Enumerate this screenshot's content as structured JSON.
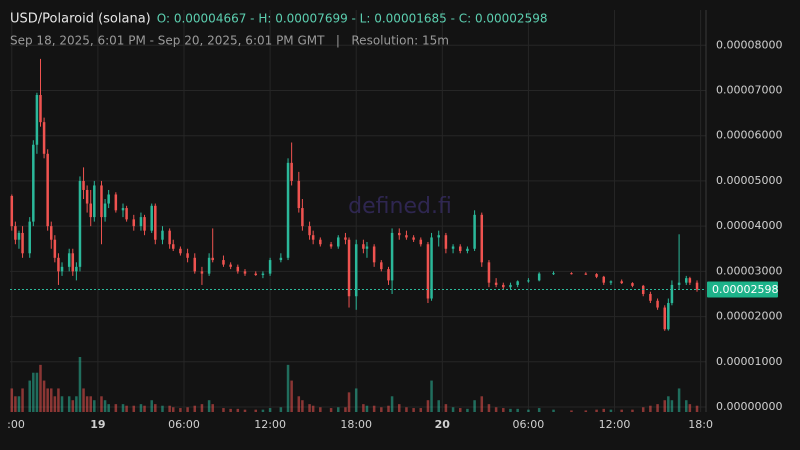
{
  "chart_data": {
    "type": "candlestick",
    "title": "USD/Polaroid (solana)",
    "ohlc_summary": "O: 0.00004667 - H: 0.00007699 - L: 0.00001685 - C: 0.00002598",
    "subtitle": "Sep 18, 2025, 6:01 PM - Sep 20, 2025, 6:01 PM GMT   |   Resolution: 15m",
    "watermark": "defined.fi",
    "up_color": "#2bb89a",
    "down_color": "#ef5350",
    "grid": true,
    "xlim": [
      -0.5,
      193.5
    ],
    "xticks": [
      {
        "value": 0,
        "label": ":00"
      },
      {
        "value": 24,
        "label": "19"
      },
      {
        "value": 48,
        "label": "06:00"
      },
      {
        "value": 72,
        "label": "12:00"
      },
      {
        "value": 96,
        "label": "18:00"
      },
      {
        "value": 120,
        "label": "20"
      },
      {
        "value": 144,
        "label": "06:00"
      },
      {
        "value": 168,
        "label": "12:00"
      },
      {
        "value": 192,
        "label": "18:0"
      }
    ],
    "ylim": [
      -1.1e-06,
      8.78e-05
    ],
    "yticks": [
      {
        "value": 0,
        "label": "0.00000000"
      },
      {
        "value": 1e-05,
        "label": "0.00001000"
      },
      {
        "value": 2e-05,
        "label": "0.00002000"
      },
      {
        "value": 3e-05,
        "label": "0.00003000"
      },
      {
        "value": 4e-05,
        "label": "0.00004000"
      },
      {
        "value": 5e-05,
        "label": "0.00005000"
      },
      {
        "value": 6e-05,
        "label": "0.00006000"
      },
      {
        "value": 7e-05,
        "label": "0.00007000"
      },
      {
        "value": 8e-05,
        "label": "0.00008000"
      }
    ],
    "last_price": {
      "value": 2.598e-05,
      "label": "0.00002598"
    },
    "candles": [
      {
        "x": 0,
        "o": 4.667e-05,
        "h": 4.7e-05,
        "l": 3.9e-05,
        "c": 4e-05,
        "v": 3
      },
      {
        "x": 1,
        "o": 4e-05,
        "h": 4.1e-05,
        "l": 3.6e-05,
        "c": 3.7e-05,
        "v": 2
      },
      {
        "x": 2,
        "o": 3.7e-05,
        "h": 3.9e-05,
        "l": 3.5e-05,
        "c": 3.85e-05,
        "v": 2
      },
      {
        "x": 3,
        "o": 3.85e-05,
        "h": 4e-05,
        "l": 3.3e-05,
        "c": 3.4e-05,
        "v": 3
      },
      {
        "x": 5,
        "o": 3.4e-05,
        "h": 4.2e-05,
        "l": 3.3e-05,
        "c": 4.1e-05,
        "v": 4
      },
      {
        "x": 6,
        "o": 4.1e-05,
        "h": 5.9e-05,
        "l": 4e-05,
        "c": 5.8e-05,
        "v": 5
      },
      {
        "x": 7,
        "o": 5.8e-05,
        "h": 6.95e-05,
        "l": 5.6e-05,
        "c": 6.9e-05,
        "v": 5
      },
      {
        "x": 8,
        "o": 6.9e-05,
        "h": 7.699e-05,
        "l": 6.2e-05,
        "c": 6.3e-05,
        "v": 6
      },
      {
        "x": 9,
        "o": 6.3e-05,
        "h": 6.4e-05,
        "l": 5.5e-05,
        "c": 5.6e-05,
        "v": 4
      },
      {
        "x": 10,
        "o": 5.6e-05,
        "h": 5.7e-05,
        "l": 3.9e-05,
        "c": 4e-05,
        "v": 3
      },
      {
        "x": 11,
        "o": 4e-05,
        "h": 4.1e-05,
        "l": 3.5e-05,
        "c": 3.7e-05,
        "v": 3
      },
      {
        "x": 12,
        "o": 3.7e-05,
        "h": 3.8e-05,
        "l": 3.2e-05,
        "c": 3.3e-05,
        "v": 2
      },
      {
        "x": 13,
        "o": 3.3e-05,
        "h": 3.4e-05,
        "l": 2.7e-05,
        "c": 3e-05,
        "v": 3
      },
      {
        "x": 14,
        "o": 3e-05,
        "h": 3.2e-05,
        "l": 2.9e-05,
        "c": 3.1e-05,
        "v": 2
      },
      {
        "x": 16,
        "o": 3.1e-05,
        "h": 3.5e-05,
        "l": 3e-05,
        "c": 3.4e-05,
        "v": 2
      },
      {
        "x": 17,
        "o": 3.4e-05,
        "h": 3.5e-05,
        "l": 2.9e-05,
        "c": 3e-05,
        "v": 1.5
      },
      {
        "x": 18,
        "o": 3e-05,
        "h": 3.2e-05,
        "l": 2.8e-05,
        "c": 3.1e-05,
        "v": 2
      },
      {
        "x": 19,
        "o": 3.1e-05,
        "h": 5.1e-05,
        "l": 3e-05,
        "c": 5e-05,
        "v": 7
      },
      {
        "x": 20,
        "o": 5e-05,
        "h": 5.3e-05,
        "l": 4.6e-05,
        "c": 4.8e-05,
        "v": 3
      },
      {
        "x": 21,
        "o": 4.8e-05,
        "h": 4.9e-05,
        "l": 4.3e-05,
        "c": 4.5e-05,
        "v": 2
      },
      {
        "x": 22,
        "o": 4.5e-05,
        "h": 4.8e-05,
        "l": 4e-05,
        "c": 4.2e-05,
        "v": 2
      },
      {
        "x": 23,
        "o": 4.2e-05,
        "h": 5e-05,
        "l": 4.1e-05,
        "c": 4.9e-05,
        "v": 1.5
      },
      {
        "x": 25,
        "o": 4.9e-05,
        "h": 5e-05,
        "l": 3.6e-05,
        "c": 4.2e-05,
        "v": 2
      },
      {
        "x": 26,
        "o": 4.2e-05,
        "h": 4.6e-05,
        "l": 4.1e-05,
        "c": 4.5e-05,
        "v": 1.5
      },
      {
        "x": 27,
        "o": 4.5e-05,
        "h": 4.8e-05,
        "l": 4.4e-05,
        "c": 4.7e-05,
        "v": 1
      },
      {
        "x": 29,
        "o": 4.7e-05,
        "h": 4.75e-05,
        "l": 4.3e-05,
        "c": 4.35e-05,
        "v": 1
      },
      {
        "x": 31,
        "o": 4.35e-05,
        "h": 4.5e-05,
        "l": 4.2e-05,
        "c": 4.4e-05,
        "v": 1
      },
      {
        "x": 32,
        "o": 4.4e-05,
        "h": 4.45e-05,
        "l": 4.1e-05,
        "c": 4.15e-05,
        "v": 0.8
      },
      {
        "x": 34,
        "o": 4.15e-05,
        "h": 4.25e-05,
        "l": 3.9e-05,
        "c": 4e-05,
        "v": 0.8
      },
      {
        "x": 36,
        "o": 4e-05,
        "h": 4.3e-05,
        "l": 3.9e-05,
        "c": 4.2e-05,
        "v": 1
      },
      {
        "x": 37,
        "o": 4.2e-05,
        "h": 4.25e-05,
        "l": 3.8e-05,
        "c": 3.9e-05,
        "v": 0.8
      },
      {
        "x": 39,
        "o": 3.9e-05,
        "h": 4.5e-05,
        "l": 3.85e-05,
        "c": 4.45e-05,
        "v": 1.5
      },
      {
        "x": 40,
        "o": 4.45e-05,
        "h": 4.5e-05,
        "l": 3.6e-05,
        "c": 3.7e-05,
        "v": 1
      },
      {
        "x": 42,
        "o": 3.7e-05,
        "h": 4e-05,
        "l": 3.6e-05,
        "c": 3.9e-05,
        "v": 0.8
      },
      {
        "x": 44,
        "o": 3.9e-05,
        "h": 3.95e-05,
        "l": 3.5e-05,
        "c": 3.6e-05,
        "v": 0.8
      },
      {
        "x": 45,
        "o": 3.6e-05,
        "h": 3.7e-05,
        "l": 3.45e-05,
        "c": 3.5e-05,
        "v": 0.6
      },
      {
        "x": 47,
        "o": 3.5e-05,
        "h": 3.55e-05,
        "l": 3.35e-05,
        "c": 3.4e-05,
        "v": 0.5
      },
      {
        "x": 49,
        "o": 3.4e-05,
        "h": 3.5e-05,
        "l": 3.2e-05,
        "c": 3.3e-05,
        "v": 0.6
      },
      {
        "x": 51,
        "o": 3.3e-05,
        "h": 3.4e-05,
        "l": 2.95e-05,
        "c": 3e-05,
        "v": 0.8
      },
      {
        "x": 53,
        "o": 3e-05,
        "h": 3.1e-05,
        "l": 2.7e-05,
        "c": 2.95e-05,
        "v": 1
      },
      {
        "x": 55,
        "o": 2.95e-05,
        "h": 3.4e-05,
        "l": 2.9e-05,
        "c": 3.3e-05,
        "v": 1.5
      },
      {
        "x": 56,
        "o": 3.3e-05,
        "h": 3.95e-05,
        "l": 3.2e-05,
        "c": 3.25e-05,
        "v": 1
      },
      {
        "x": 59,
        "o": 3.25e-05,
        "h": 3.35e-05,
        "l": 3.1e-05,
        "c": 3.15e-05,
        "v": 0.5
      },
      {
        "x": 61,
        "o": 3.15e-05,
        "h": 3.2e-05,
        "l": 3.05e-05,
        "c": 3.1e-05,
        "v": 0.4
      },
      {
        "x": 63,
        "o": 3.1e-05,
        "h": 3.15e-05,
        "l": 2.95e-05,
        "c": 3e-05,
        "v": 0.4
      },
      {
        "x": 65,
        "o": 3e-05,
        "h": 3.05e-05,
        "l": 2.9e-05,
        "c": 2.95e-05,
        "v": 0.3
      },
      {
        "x": 68,
        "o": 2.95e-05,
        "h": 3e-05,
        "l": 2.9e-05,
        "c": 2.92e-05,
        "v": 0.3
      },
      {
        "x": 70,
        "o": 2.92e-05,
        "h": 3e-05,
        "l": 2.85e-05,
        "c": 2.95e-05,
        "v": 0.3
      },
      {
        "x": 72,
        "o": 2.95e-05,
        "h": 3.3e-05,
        "l": 2.9e-05,
        "c": 3.25e-05,
        "v": 0.5
      },
      {
        "x": 75,
        "o": 3.25e-05,
        "h": 3.4e-05,
        "l": 3.2e-05,
        "c": 3.3e-05,
        "v": 0.6
      },
      {
        "x": 77,
        "o": 3.3e-05,
        "h": 5.5e-05,
        "l": 3.25e-05,
        "c": 5.4e-05,
        "v": 6
      },
      {
        "x": 78,
        "o": 5.4e-05,
        "h": 5.85e-05,
        "l": 4.9e-05,
        "c": 5e-05,
        "v": 4
      },
      {
        "x": 80,
        "o": 5e-05,
        "h": 5.2e-05,
        "l": 4.3e-05,
        "c": 4.4e-05,
        "v": 2
      },
      {
        "x": 81,
        "o": 4.4e-05,
        "h": 4.6e-05,
        "l": 3.9e-05,
        "c": 4e-05,
        "v": 1.5
      },
      {
        "x": 83,
        "o": 4e-05,
        "h": 4.1e-05,
        "l": 3.7e-05,
        "c": 3.8e-05,
        "v": 1
      },
      {
        "x": 84,
        "o": 3.8e-05,
        "h": 3.9e-05,
        "l": 3.6e-05,
        "c": 3.7e-05,
        "v": 0.8
      },
      {
        "x": 86,
        "o": 3.7e-05,
        "h": 3.75e-05,
        "l": 3.55e-05,
        "c": 3.6e-05,
        "v": 0.6
      },
      {
        "x": 89,
        "o": 3.6e-05,
        "h": 3.65e-05,
        "l": 3.5e-05,
        "c": 3.55e-05,
        "v": 0.5
      },
      {
        "x": 91,
        "o": 3.55e-05,
        "h": 3.8e-05,
        "l": 3.5e-05,
        "c": 3.75e-05,
        "v": 0.6
      },
      {
        "x": 93,
        "o": 3.75e-05,
        "h": 3.85e-05,
        "l": 3.6e-05,
        "c": 3.7e-05,
        "v": 0.6
      },
      {
        "x": 94,
        "o": 3.7e-05,
        "h": 3.75e-05,
        "l": 2.2e-05,
        "c": 2.45e-05,
        "v": 2.5
      },
      {
        "x": 96,
        "o": 2.45e-05,
        "h": 3.7e-05,
        "l": 2.15e-05,
        "c": 3.6e-05,
        "v": 3
      },
      {
        "x": 98,
        "o": 3.6e-05,
        "h": 3.7e-05,
        "l": 3.4e-05,
        "c": 3.5e-05,
        "v": 1
      },
      {
        "x": 99,
        "o": 3.5e-05,
        "h": 3.65e-05,
        "l": 3.3e-05,
        "c": 3.55e-05,
        "v": 0.8
      },
      {
        "x": 101,
        "o": 3.55e-05,
        "h": 3.6e-05,
        "l": 3.1e-05,
        "c": 3.2e-05,
        "v": 0.8
      },
      {
        "x": 103,
        "o": 3.2e-05,
        "h": 3.25e-05,
        "l": 3e-05,
        "c": 3.05e-05,
        "v": 0.6
      },
      {
        "x": 105,
        "o": 3.05e-05,
        "h": 3.1e-05,
        "l": 2.7e-05,
        "c": 2.8e-05,
        "v": 0.8
      },
      {
        "x": 106,
        "o": 2.8e-05,
        "h": 3.95e-05,
        "l": 2.5e-05,
        "c": 3.85e-05,
        "v": 2
      },
      {
        "x": 108,
        "o": 3.85e-05,
        "h": 3.95e-05,
        "l": 3.7e-05,
        "c": 3.8e-05,
        "v": 1
      },
      {
        "x": 110,
        "o": 3.8e-05,
        "h": 3.9e-05,
        "l": 3.7e-05,
        "c": 3.75e-05,
        "v": 0.6
      },
      {
        "x": 112,
        "o": 3.75e-05,
        "h": 3.8e-05,
        "l": 3.65e-05,
        "c": 3.7e-05,
        "v": 0.5
      },
      {
        "x": 114,
        "o": 3.7e-05,
        "h": 3.75e-05,
        "l": 3.55e-05,
        "c": 3.6e-05,
        "v": 0.5
      },
      {
        "x": 116,
        "o": 3.6e-05,
        "h": 3.65e-05,
        "l": 2.3e-05,
        "c": 2.4e-05,
        "v": 1.5
      },
      {
        "x": 117,
        "o": 2.4e-05,
        "h": 3.85e-05,
        "l": 2.35e-05,
        "c": 3.75e-05,
        "v": 4
      },
      {
        "x": 119,
        "o": 3.75e-05,
        "h": 3.9e-05,
        "l": 3.55e-05,
        "c": 3.8e-05,
        "v": 1.5
      },
      {
        "x": 121,
        "o": 3.8e-05,
        "h": 3.85e-05,
        "l": 3.4e-05,
        "c": 3.5e-05,
        "v": 1
      },
      {
        "x": 123,
        "o": 3.5e-05,
        "h": 3.6e-05,
        "l": 3.4e-05,
        "c": 3.55e-05,
        "v": 0.6
      },
      {
        "x": 125,
        "o": 3.55e-05,
        "h": 3.6e-05,
        "l": 3.4e-05,
        "c": 3.45e-05,
        "v": 0.5
      },
      {
        "x": 127,
        "o": 3.45e-05,
        "h": 3.55e-05,
        "l": 3.4e-05,
        "c": 3.5e-05,
        "v": 0.4
      },
      {
        "x": 129,
        "o": 3.5e-05,
        "h": 4.35e-05,
        "l": 3.45e-05,
        "c": 4.25e-05,
        "v": 1.5
      },
      {
        "x": 131,
        "o": 4.25e-05,
        "h": 4.3e-05,
        "l": 3.1e-05,
        "c": 3.2e-05,
        "v": 2
      },
      {
        "x": 133,
        "o": 3.2e-05,
        "h": 3.25e-05,
        "l": 2.65e-05,
        "c": 2.75e-05,
        "v": 1
      },
      {
        "x": 135,
        "o": 2.75e-05,
        "h": 2.85e-05,
        "l": 2.65e-05,
        "c": 2.7e-05,
        "v": 0.6
      },
      {
        "x": 137,
        "o": 2.7e-05,
        "h": 2.75e-05,
        "l": 2.6e-05,
        "c": 2.65e-05,
        "v": 0.5
      },
      {
        "x": 139,
        "o": 2.65e-05,
        "h": 2.75e-05,
        "l": 2.6e-05,
        "c": 2.7e-05,
        "v": 0.4
      },
      {
        "x": 141,
        "o": 2.7e-05,
        "h": 2.8e-05,
        "l": 2.65e-05,
        "c": 2.78e-05,
        "v": 0.4
      },
      {
        "x": 144,
        "o": 2.78e-05,
        "h": 2.85e-05,
        "l": 2.75e-05,
        "c": 2.8e-05,
        "v": 0.3
      },
      {
        "x": 147,
        "o": 2.8e-05,
        "h": 2.98e-05,
        "l": 2.78e-05,
        "c": 2.95e-05,
        "v": 0.5
      },
      {
        "x": 151,
        "o": 2.95e-05,
        "h": 3e-05,
        "l": 2.92e-05,
        "c": 2.96e-05,
        "v": 0.3
      },
      {
        "x": 156,
        "o": 2.96e-05,
        "h": 2.98e-05,
        "l": 2.93e-05,
        "c": 2.95e-05,
        "v": 0.2
      },
      {
        "x": 160,
        "o": 2.95e-05,
        "h": 2.98e-05,
        "l": 2.92e-05,
        "c": 2.94e-05,
        "v": 0.2
      },
      {
        "x": 163,
        "o": 2.94e-05,
        "h": 2.96e-05,
        "l": 2.85e-05,
        "c": 2.88e-05,
        "v": 0.3
      },
      {
        "x": 165,
        "o": 2.88e-05,
        "h": 2.9e-05,
        "l": 2.7e-05,
        "c": 2.75e-05,
        "v": 0.4
      },
      {
        "x": 167,
        "o": 2.75e-05,
        "h": 2.8e-05,
        "l": 2.7e-05,
        "c": 2.78e-05,
        "v": 0.3
      },
      {
        "x": 170,
        "o": 2.78e-05,
        "h": 2.82e-05,
        "l": 2.72e-05,
        "c": 2.74e-05,
        "v": 0.3
      },
      {
        "x": 173,
        "o": 2.74e-05,
        "h": 2.76e-05,
        "l": 2.65e-05,
        "c": 2.68e-05,
        "v": 0.3
      },
      {
        "x": 176,
        "o": 2.68e-05,
        "h": 2.7e-05,
        "l": 2.45e-05,
        "c": 2.5e-05,
        "v": 0.6
      },
      {
        "x": 178,
        "o": 2.5e-05,
        "h": 2.55e-05,
        "l": 2.3e-05,
        "c": 2.35e-05,
        "v": 0.8
      },
      {
        "x": 180,
        "o": 2.35e-05,
        "h": 2.4e-05,
        "l": 2.15e-05,
        "c": 2.2e-05,
        "v": 1
      },
      {
        "x": 182,
        "o": 2.2e-05,
        "h": 2.25e-05,
        "l": 1.685e-05,
        "c": 1.72e-05,
        "v": 1.5
      },
      {
        "x": 183,
        "o": 1.72e-05,
        "h": 2.4e-05,
        "l": 1.69e-05,
        "c": 2.3e-05,
        "v": 2
      },
      {
        "x": 184,
        "o": 2.3e-05,
        "h": 2.8e-05,
        "l": 2.25e-05,
        "c": 2.7e-05,
        "v": 1.5
      },
      {
        "x": 186,
        "o": 2.7e-05,
        "h": 3.82e-05,
        "l": 2.6e-05,
        "c": 2.75e-05,
        "v": 3
      },
      {
        "x": 188,
        "o": 2.75e-05,
        "h": 2.9e-05,
        "l": 2.7e-05,
        "c": 2.85e-05,
        "v": 1.5
      },
      {
        "x": 189,
        "o": 2.85e-05,
        "h": 2.88e-05,
        "l": 2.7e-05,
        "c": 2.75e-05,
        "v": 1
      },
      {
        "x": 191,
        "o": 2.75e-05,
        "h": 2.8e-05,
        "l": 2.55e-05,
        "c": 2.598e-05,
        "v": 0.8
      }
    ]
  }
}
